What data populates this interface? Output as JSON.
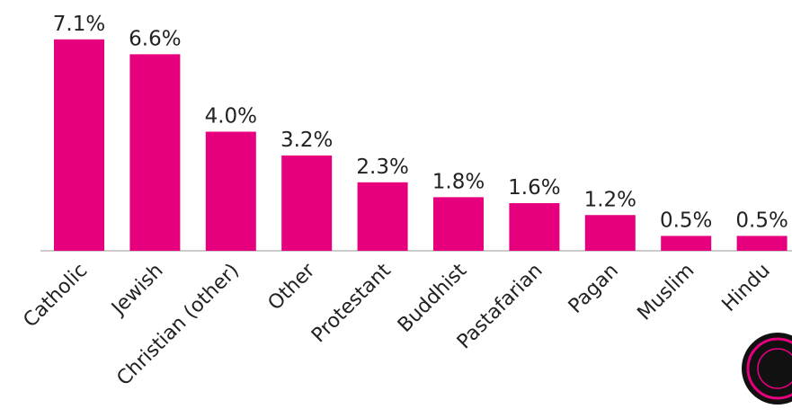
{
  "chart_data": {
    "type": "bar",
    "categories": [
      "Catholic",
      "Jewish",
      "Christian (other)",
      "Other",
      "Protestant",
      "Buddhist",
      "Pastafarian",
      "Pagan",
      "Muslim",
      "Hindu"
    ],
    "values": [
      7.1,
      6.6,
      4.0,
      3.2,
      2.3,
      1.8,
      1.6,
      1.2,
      0.5,
      0.5
    ],
    "value_labels": [
      "7.1%",
      "6.6%",
      "4.0%",
      "3.2%",
      "2.3%",
      "1.8%",
      "1.6%",
      "1.2%",
      "0.5%",
      "0.5%"
    ],
    "color": "#e6007e",
    "ylim": [
      0,
      8
    ]
  }
}
